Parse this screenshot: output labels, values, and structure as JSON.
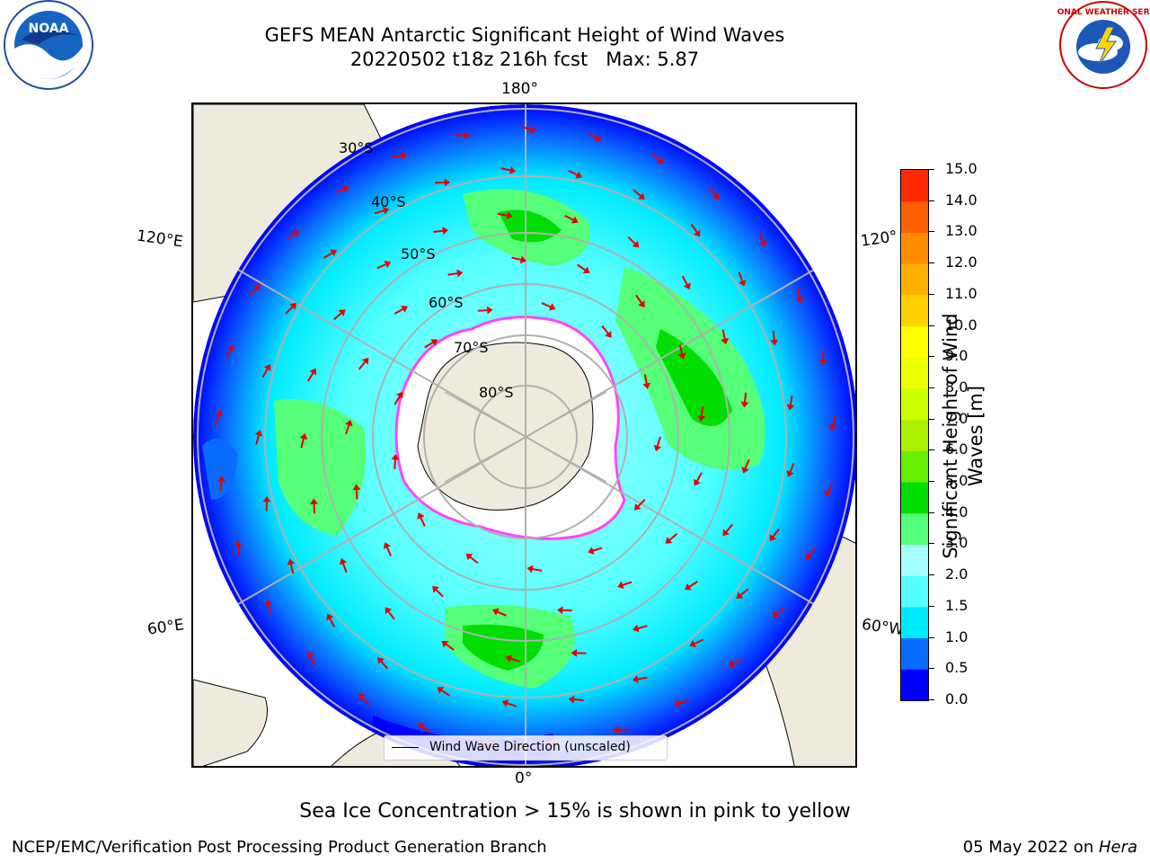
{
  "title": {
    "line1": "GEFS MEAN Antarctic Significant Height of Wind Waves",
    "line2": "20220502 t18z 216h fcst   Max: 5.87"
  },
  "map": {
    "longitude_labels": {
      "top": "180°",
      "bottom": "0°",
      "upper_left": "120°E",
      "lower_left": "60°E",
      "upper_right": "120°",
      "lower_right": "60°W"
    },
    "latitude_labels": [
      "30°S",
      "40°S",
      "50°S",
      "60°S",
      "70°S",
      "80°S"
    ],
    "legend_label": "Wind Wave Direction (unscaled)",
    "arrow_color": "#e60000",
    "land_color": "#efebdc",
    "ice_color": "#ff44ff"
  },
  "colorbar": {
    "label": "Significant Height of Wind Waves [m]",
    "label_line1": "Significant Height of Wind",
    "label_line2": "Waves [m]",
    "ticks": [
      "0.0",
      "0.5",
      "1.0",
      "1.5",
      "2.0",
      "3.0",
      "4.0",
      "5.0",
      "6.0",
      "7.0",
      "8.0",
      "9.0",
      "10.0",
      "11.0",
      "12.0",
      "13.0",
      "14.0",
      "15.0"
    ],
    "colors": [
      "#0000ff",
      "#0a6cff",
      "#00eaff",
      "#55ffff",
      "#a6ffff",
      "#55ff77",
      "#00dd00",
      "#66ee00",
      "#aaee00",
      "#ccff00",
      "#eeff00",
      "#ffff00",
      "#ffd000",
      "#ffb000",
      "#ff8c00",
      "#ff6000",
      "#ff2a00",
      "#ff0000"
    ]
  },
  "subtitle": "Sea Ice Concentration > 15% is shown in pink to yellow",
  "footer": {
    "left": "NCEP/EMC/Verification Post Processing Product Generation Branch",
    "right_date": "05 May 2022 on ",
    "right_host": "Hera"
  },
  "logos": {
    "left": "NOAA",
    "right": "NATIONAL WEATHER SERVICE"
  }
}
